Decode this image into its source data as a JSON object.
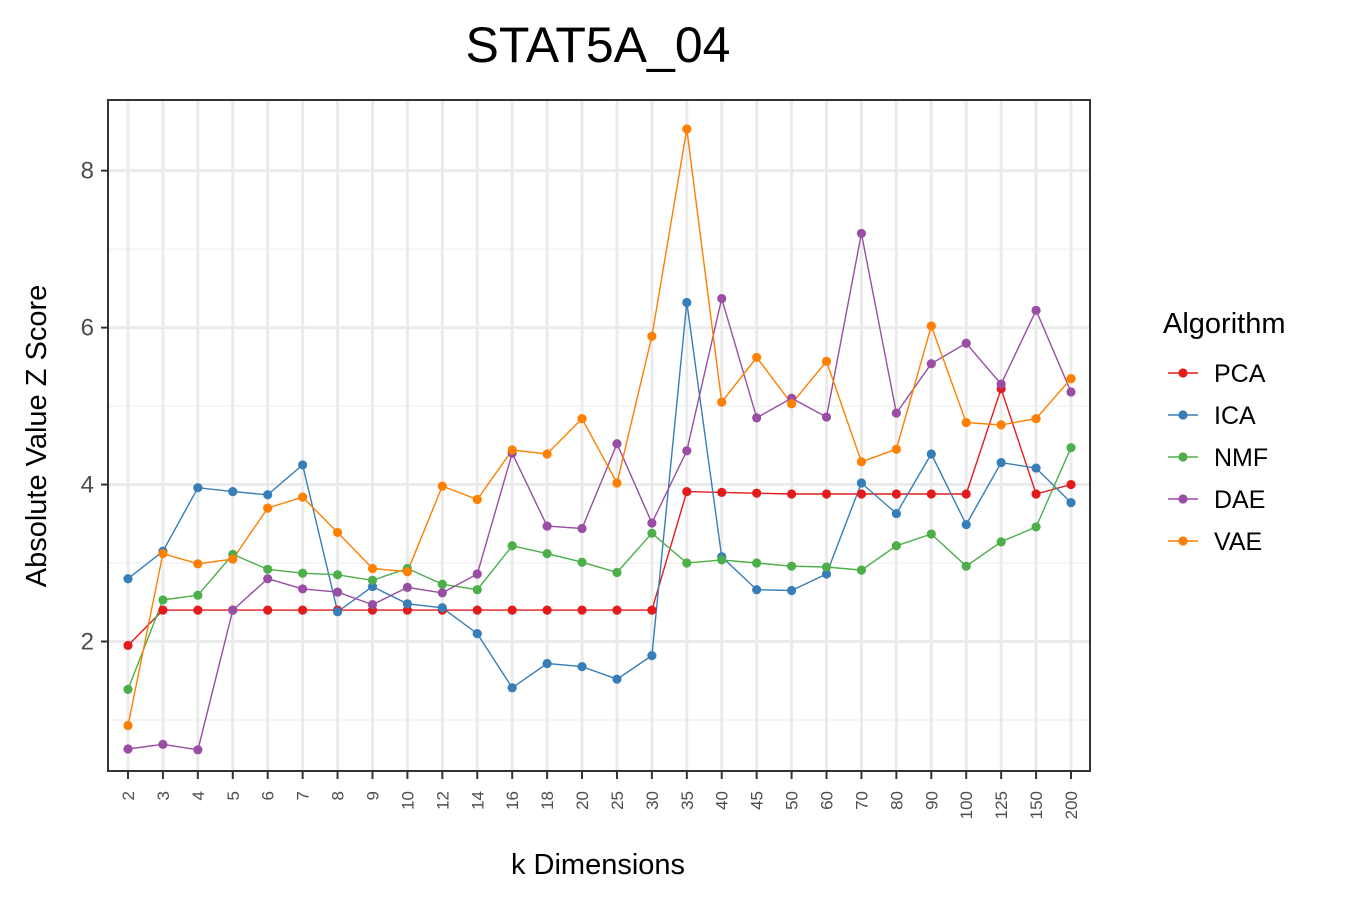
{
  "chart_data": {
    "type": "line",
    "title": "STAT5A_04",
    "xlabel": "k Dimensions",
    "ylabel": "Absolute Value Z Score",
    "categories": [
      "2",
      "3",
      "4",
      "5",
      "6",
      "7",
      "8",
      "9",
      "10",
      "12",
      "14",
      "16",
      "18",
      "20",
      "25",
      "30",
      "35",
      "40",
      "45",
      "50",
      "60",
      "70",
      "80",
      "90",
      "100",
      "125",
      "150",
      "200"
    ],
    "ylim": [
      0.35,
      8.9
    ],
    "yticks": [
      2,
      4,
      6,
      8
    ],
    "yticks_labels": [
      "2",
      "4",
      "6",
      "8"
    ],
    "grid": true,
    "legend_title": "Algorithm",
    "legend_position": "right",
    "series": [
      {
        "name": "PCA",
        "color": "#e41a1c",
        "values": [
          1.95,
          2.4,
          2.4,
          2.4,
          2.4,
          2.4,
          2.4,
          2.4,
          2.4,
          2.4,
          2.4,
          2.4,
          2.4,
          2.4,
          2.4,
          2.4,
          3.91,
          3.9,
          3.89,
          3.88,
          3.88,
          3.88,
          3.88,
          3.88,
          3.88,
          5.22,
          3.88,
          4.0
        ]
      },
      {
        "name": "ICA",
        "color": "#377eb8",
        "values": [
          2.8,
          3.15,
          3.96,
          3.91,
          3.87,
          4.25,
          2.38,
          2.7,
          2.48,
          2.43,
          2.1,
          1.41,
          1.72,
          1.68,
          1.52,
          1.82,
          6.32,
          3.08,
          2.66,
          2.65,
          2.86,
          4.02,
          3.63,
          4.39,
          3.49,
          4.28,
          4.21,
          3.77
        ]
      },
      {
        "name": "NMF",
        "color": "#4daf4a",
        "values": [
          1.39,
          2.53,
          2.59,
          3.11,
          2.92,
          2.87,
          2.85,
          2.78,
          2.93,
          2.73,
          2.66,
          3.22,
          3.12,
          3.01,
          2.88,
          3.38,
          3.0,
          3.04,
          3.0,
          2.96,
          2.95,
          2.91,
          3.22,
          3.37,
          2.96,
          3.27,
          3.46,
          4.47
        ]
      },
      {
        "name": "DAE",
        "color": "#984ea3",
        "values": [
          0.63,
          0.69,
          0.62,
          2.4,
          2.8,
          2.67,
          2.63,
          2.47,
          2.69,
          2.62,
          2.86,
          4.4,
          3.47,
          3.44,
          4.52,
          3.51,
          4.43,
          6.37,
          4.85,
          5.1,
          4.86,
          7.2,
          4.91,
          5.54,
          5.8,
          5.28,
          6.22,
          5.18
        ]
      },
      {
        "name": "VAE",
        "color": "#ff7f00",
        "values": [
          0.93,
          3.12,
          2.99,
          3.05,
          3.7,
          3.84,
          3.39,
          2.93,
          2.89,
          3.98,
          3.81,
          4.44,
          4.39,
          4.84,
          4.02,
          5.89,
          8.53,
          5.05,
          5.62,
          5.03,
          5.57,
          4.29,
          4.45,
          6.02,
          4.79,
          4.76,
          4.84,
          5.35
        ]
      }
    ]
  }
}
